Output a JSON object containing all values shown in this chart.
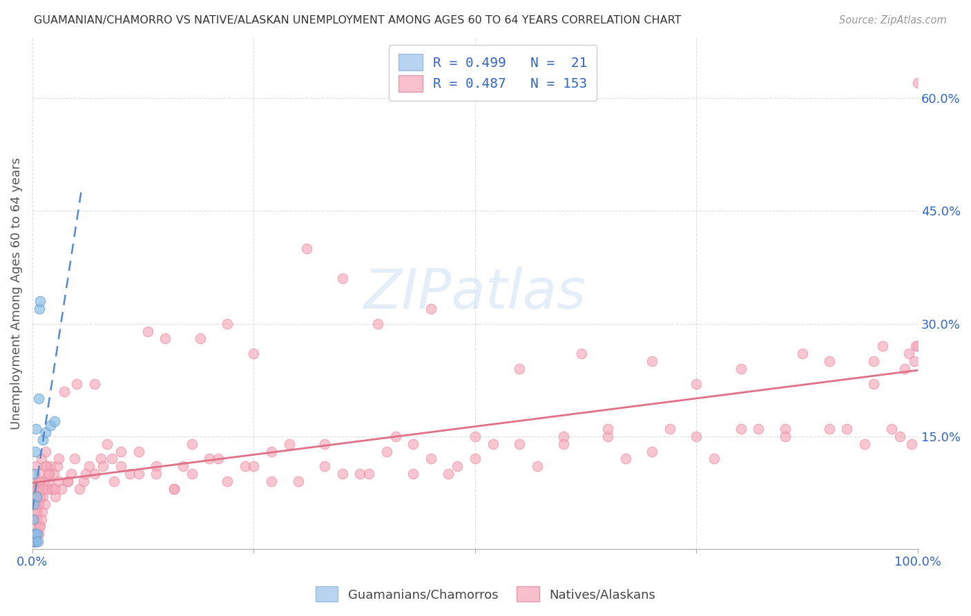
{
  "title": "GUAMANIAN/CHAMORRO VS NATIVE/ALASKAN UNEMPLOYMENT AMONG AGES 60 TO 64 YEARS CORRELATION CHART",
  "source": "Source: ZipAtlas.com",
  "ylabel": "Unemployment Among Ages 60 to 64 years",
  "xlim": [
    0,
    1.0
  ],
  "ylim": [
    0,
    0.68
  ],
  "ytick_positions": [
    0.15,
    0.3,
    0.45,
    0.6
  ],
  "yticklabels": [
    "15.0%",
    "30.0%",
    "45.0%",
    "60.0%"
  ],
  "blue_color": "#8bbfe8",
  "blue_edge_color": "#6699cc",
  "pink_color": "#f5a8b8",
  "pink_edge_color": "#e888a0",
  "blue_line_color": "#5588cc",
  "pink_line_color": "#e07088",
  "legend_box_blue": "#b8d4f0",
  "legend_box_pink": "#f8c0cc",
  "legend_text_color": "#3366bb",
  "tick_color": "#3366bb",
  "R_blue": 0.499,
  "N_blue": 21,
  "R_pink": 0.487,
  "N_pink": 153,
  "background_color": "#ffffff",
  "grid_color": "#dddddd",
  "title_color": "#333333",
  "source_color": "#999999",
  "ylabel_color": "#555555",
  "watermark_color": "#cce0f5",
  "blue_x": [
    0.001,
    0.001,
    0.001,
    0.002,
    0.002,
    0.002,
    0.003,
    0.003,
    0.003,
    0.004,
    0.004,
    0.005,
    0.005,
    0.006,
    0.007,
    0.008,
    0.009,
    0.012,
    0.015,
    0.02,
    0.025
  ],
  "blue_y": [
    0.01,
    0.02,
    0.04,
    0.01,
    0.06,
    0.1,
    0.01,
    0.02,
    0.13,
    0.01,
    0.16,
    0.02,
    0.07,
    0.01,
    0.2,
    0.32,
    0.33,
    0.145,
    0.155,
    0.165,
    0.17
  ],
  "pink_x": [
    0.001,
    0.001,
    0.001,
    0.002,
    0.002,
    0.002,
    0.003,
    0.003,
    0.003,
    0.004,
    0.004,
    0.004,
    0.005,
    0.005,
    0.005,
    0.006,
    0.006,
    0.007,
    0.007,
    0.008,
    0.008,
    0.009,
    0.009,
    0.01,
    0.01,
    0.011,
    0.012,
    0.013,
    0.014,
    0.015,
    0.016,
    0.017,
    0.018,
    0.019,
    0.02,
    0.022,
    0.024,
    0.026,
    0.028,
    0.03,
    0.033,
    0.036,
    0.04,
    0.044,
    0.048,
    0.053,
    0.058,
    0.064,
    0.07,
    0.077,
    0.084,
    0.092,
    0.1,
    0.11,
    0.12,
    0.13,
    0.14,
    0.15,
    0.16,
    0.17,
    0.18,
    0.19,
    0.21,
    0.22,
    0.24,
    0.25,
    0.27,
    0.29,
    0.31,
    0.33,
    0.35,
    0.37,
    0.39,
    0.41,
    0.43,
    0.45,
    0.47,
    0.5,
    0.52,
    0.55,
    0.57,
    0.6,
    0.62,
    0.65,
    0.67,
    0.7,
    0.72,
    0.75,
    0.77,
    0.8,
    0.82,
    0.85,
    0.87,
    0.9,
    0.92,
    0.94,
    0.95,
    0.96,
    0.97,
    0.98,
    0.985,
    0.99,
    0.993,
    0.996,
    0.998,
    1.0,
    0.002,
    0.003,
    0.004,
    0.005,
    0.006,
    0.007,
    0.008,
    0.009,
    0.012,
    0.015,
    0.018,
    0.025,
    0.03,
    0.04,
    0.05,
    0.06,
    0.07,
    0.08,
    0.09,
    0.1,
    0.12,
    0.14,
    0.16,
    0.18,
    0.2,
    0.22,
    0.25,
    0.27,
    0.3,
    0.33,
    0.35,
    0.38,
    0.4,
    0.43,
    0.45,
    0.48,
    0.5,
    0.55,
    0.6,
    0.65,
    0.7,
    0.75,
    0.8,
    0.85,
    0.9,
    0.95,
    1.0
  ],
  "pink_y": [
    0.01,
    0.03,
    0.06,
    0.01,
    0.04,
    0.08,
    0.01,
    0.05,
    0.09,
    0.01,
    0.06,
    0.11,
    0.01,
    0.04,
    0.08,
    0.02,
    0.07,
    0.02,
    0.09,
    0.03,
    0.1,
    0.03,
    0.08,
    0.04,
    0.12,
    0.05,
    0.07,
    0.09,
    0.06,
    0.13,
    0.11,
    0.08,
    0.09,
    0.1,
    0.11,
    0.08,
    0.1,
    0.07,
    0.11,
    0.09,
    0.08,
    0.21,
    0.09,
    0.1,
    0.12,
    0.08,
    0.09,
    0.11,
    0.1,
    0.12,
    0.14,
    0.09,
    0.11,
    0.1,
    0.13,
    0.29,
    0.11,
    0.28,
    0.08,
    0.11,
    0.14,
    0.28,
    0.12,
    0.3,
    0.11,
    0.26,
    0.13,
    0.14,
    0.4,
    0.14,
    0.36,
    0.1,
    0.3,
    0.15,
    0.14,
    0.32,
    0.1,
    0.15,
    0.14,
    0.24,
    0.11,
    0.15,
    0.26,
    0.15,
    0.12,
    0.25,
    0.16,
    0.22,
    0.12,
    0.24,
    0.16,
    0.16,
    0.26,
    0.25,
    0.16,
    0.14,
    0.22,
    0.27,
    0.16,
    0.15,
    0.24,
    0.26,
    0.14,
    0.25,
    0.27,
    0.62,
    0.06,
    0.07,
    0.06,
    0.05,
    0.08,
    0.06,
    0.09,
    0.07,
    0.08,
    0.11,
    0.1,
    0.08,
    0.12,
    0.09,
    0.22,
    0.1,
    0.22,
    0.11,
    0.12,
    0.13,
    0.1,
    0.1,
    0.08,
    0.1,
    0.12,
    0.09,
    0.11,
    0.09,
    0.09,
    0.11,
    0.1,
    0.1,
    0.13,
    0.1,
    0.12,
    0.11,
    0.12,
    0.14,
    0.14,
    0.16,
    0.13,
    0.15,
    0.16,
    0.15,
    0.16,
    0.25,
    0.27
  ]
}
